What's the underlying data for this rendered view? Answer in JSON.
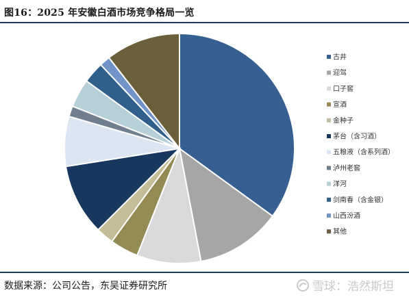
{
  "figure": {
    "title": "图16：2025 年安徽白酒市场竞争格局一览",
    "source": "数据来源：公司公告，东吴证券研究所"
  },
  "watermark": {
    "text": "雪球：浩然斯坦"
  },
  "chart_data": {
    "type": "pie",
    "start_angle": "top",
    "direction": "clockwise",
    "legend_position": "right",
    "slices": [
      {
        "label": "古井",
        "value": 35.0,
        "color": "#376092"
      },
      {
        "label": "迎驾",
        "value": 12.0,
        "color": "#a6a6a6"
      },
      {
        "label": "口子窖",
        "value": 9.0,
        "color": "#d9d9d9"
      },
      {
        "label": "宣酒",
        "value": 4.0,
        "color": "#948a54"
      },
      {
        "label": "金种子",
        "value": 2.5,
        "color": "#c4bd97"
      },
      {
        "label": "茅台（含习酒）",
        "value": 10.0,
        "color": "#17375e"
      },
      {
        "label": "五粮液（含系列酒）",
        "value": 7.0,
        "color": "#dce6f2"
      },
      {
        "label": "泸州老窖",
        "value": 1.5,
        "color": "#6f7f8f"
      },
      {
        "label": "洋河",
        "value": 4.0,
        "color": "#b7cfd9"
      },
      {
        "label": "剑南春（含金银）",
        "value": 3.0,
        "color": "#2f5f8a"
      },
      {
        "label": "山西汾酒",
        "value": 1.5,
        "color": "#7094c7"
      },
      {
        "label": "其他",
        "value": 10.5,
        "color": "#6b5e3a"
      }
    ]
  }
}
